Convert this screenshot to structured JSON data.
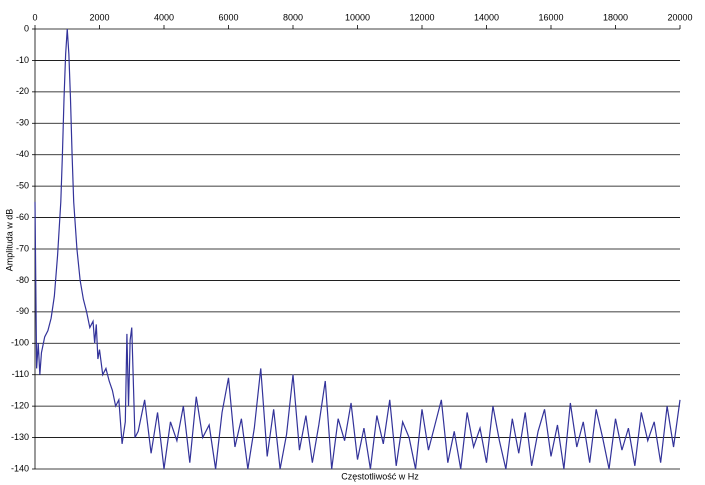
{
  "chart_data": {
    "type": "line",
    "x_label": "Częstotliwość w Hz",
    "y_label": "Amplituda w dB",
    "xlim": [
      0,
      20000
    ],
    "xticks": [
      0,
      2000,
      4000,
      6000,
      8000,
      10000,
      12000,
      14000,
      16000,
      18000,
      20000
    ],
    "ylim": [
      -140,
      0
    ],
    "yticks": [
      0,
      -10,
      -20,
      -30,
      -40,
      -50,
      -60,
      -70,
      -80,
      -90,
      -100,
      -110,
      -120,
      -130,
      -140
    ],
    "grid": true,
    "series": [
      {
        "color": "#33339a",
        "x": [
          0,
          50,
          100,
          150,
          200,
          300,
          400,
          500,
          600,
          700,
          800,
          850,
          900,
          950,
          1000,
          1050,
          1100,
          1150,
          1200,
          1300,
          1400,
          1500,
          1600,
          1700,
          1800,
          1850,
          1900,
          1950,
          2000,
          2100,
          2200,
          2300,
          2400,
          2500,
          2600,
          2700,
          2800,
          2850,
          2900,
          2950,
          3000,
          3100,
          3200,
          3400,
          3600,
          3800,
          4000,
          4200,
          4400,
          4600,
          4800,
          5000,
          5200,
          5400,
          5600,
          5800,
          6000,
          6200,
          6400,
          6600,
          6800,
          7000,
          7200,
          7400,
          7600,
          7800,
          8000,
          8200,
          8400,
          8600,
          8800,
          9000,
          9200,
          9400,
          9600,
          9800,
          10000,
          10200,
          10400,
          10600,
          10800,
          11000,
          11200,
          11400,
          11600,
          11800,
          12000,
          12200,
          12400,
          12600,
          12800,
          13000,
          13200,
          13400,
          13600,
          13800,
          14000,
          14200,
          14400,
          14600,
          14800,
          15000,
          15200,
          15400,
          15600,
          15800,
          16000,
          16200,
          16400,
          16600,
          16800,
          17000,
          17200,
          17400,
          17600,
          17800,
          18000,
          18200,
          18400,
          18600,
          18800,
          19000,
          19200,
          19400,
          19600,
          19800,
          20000
        ],
        "values": [
          -55,
          -108,
          -100,
          -110,
          -103,
          -98,
          -96,
          -92,
          -85,
          -72,
          -55,
          -40,
          -22,
          -8,
          0,
          -8,
          -22,
          -40,
          -55,
          -70,
          -80,
          -86,
          -90,
          -95,
          -93,
          -100,
          -94,
          -105,
          -102,
          -110,
          -108,
          -112,
          -115,
          -120,
          -118,
          -132,
          -125,
          -97,
          -120,
          -99,
          -95,
          -130,
          -128,
          -118,
          -135,
          -122,
          -140,
          -125,
          -131,
          -120,
          -138,
          -117,
          -130,
          -126,
          -140,
          -122,
          -111,
          -133,
          -124,
          -140,
          -127,
          -108,
          -136,
          -121,
          -140,
          -129,
          -110,
          -134,
          -123,
          -138,
          -126,
          -112,
          -140,
          -124,
          -131,
          -119,
          -137,
          -127,
          -140,
          -123,
          -132,
          -118,
          -139,
          -125,
          -130,
          -140,
          -121,
          -134,
          -126,
          -118,
          -138,
          -128,
          -140,
          -122,
          -133,
          -127,
          -138,
          -120,
          -131,
          -140,
          -124,
          -135,
          -122,
          -139,
          -128,
          -121,
          -136,
          -126,
          -140,
          -119,
          -133,
          -125,
          -138,
          -121,
          -130,
          -140,
          -124,
          -134,
          -127,
          -139,
          -122,
          -131,
          -125,
          -138,
          -120,
          -133,
          -118
        ]
      }
    ]
  }
}
